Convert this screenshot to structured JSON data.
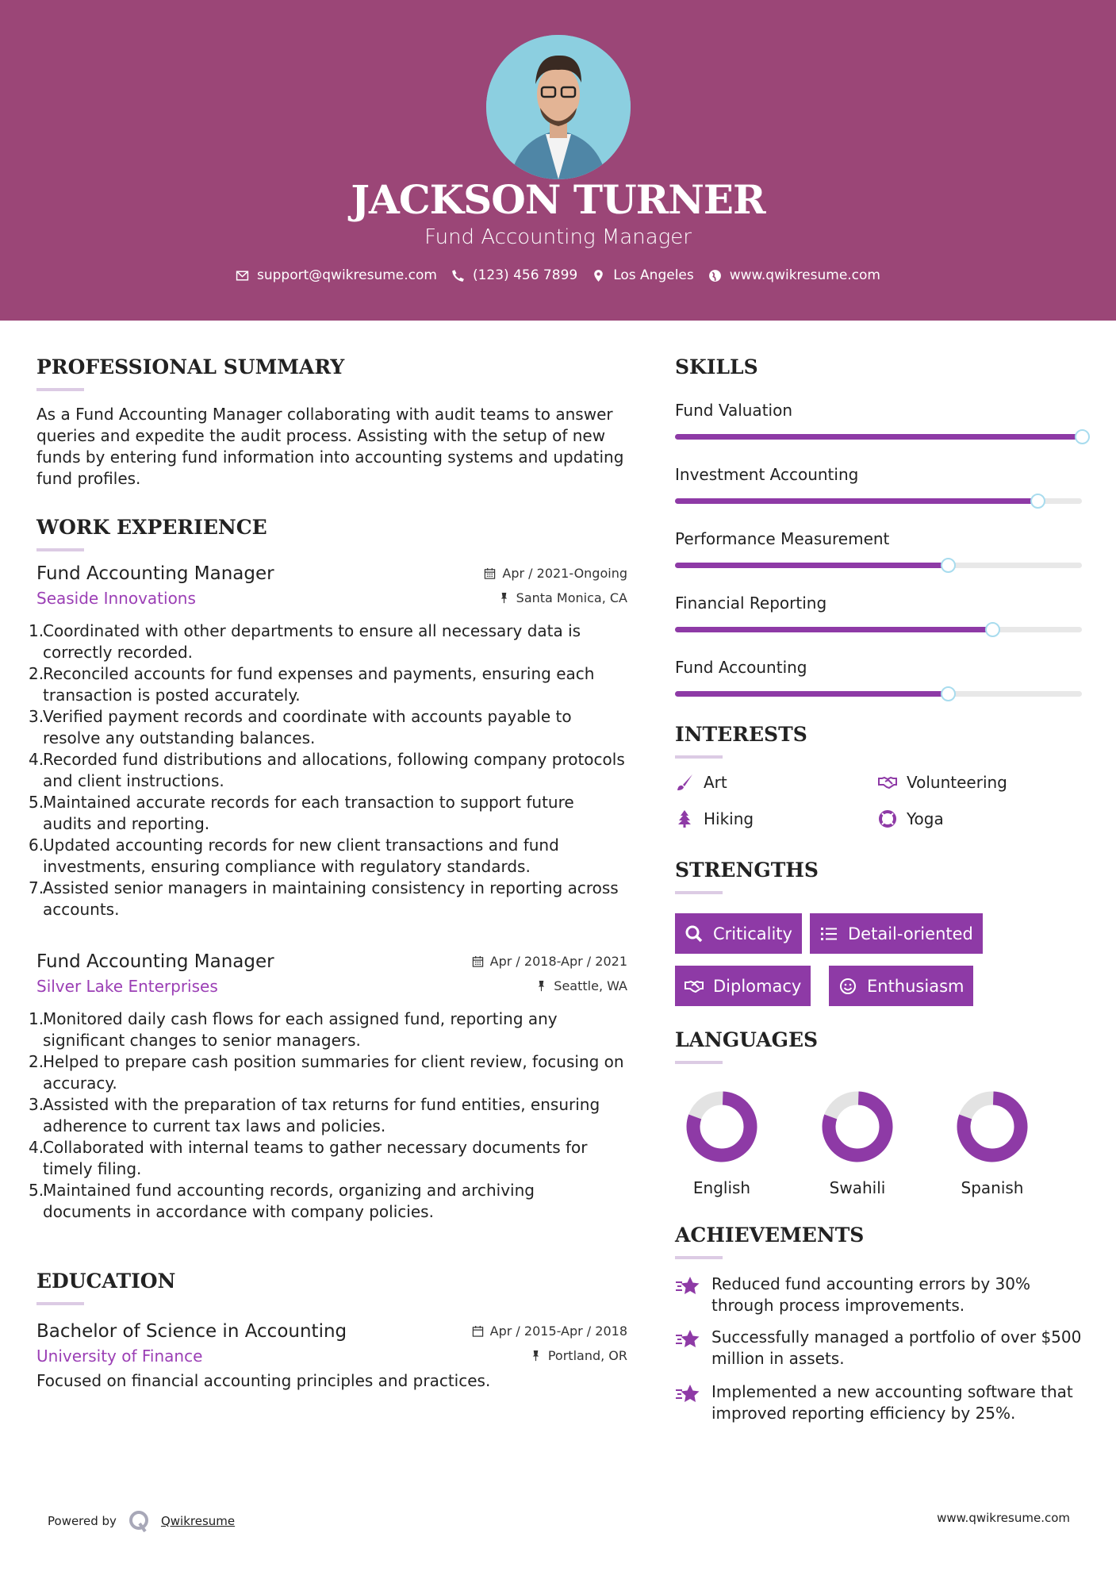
{
  "header": {
    "name": "JACKSON TURNER",
    "title": "Fund Accounting Manager",
    "contacts": [
      {
        "icon": "envelope-icon",
        "text": "support@qwikresume.com"
      },
      {
        "icon": "phone-icon",
        "text": "(123) 456 7899"
      },
      {
        "icon": "map-marker-icon",
        "text": "Los Angeles"
      },
      {
        "icon": "globe-icon",
        "text": "www.qwikresume.com"
      }
    ]
  },
  "colors": {
    "header": "#9b4677",
    "accent": "#8e3aa6",
    "company": "#9b3fb5"
  },
  "summary": {
    "heading": "PROFESSIONAL SUMMARY",
    "text": "As a Fund Accounting Manager collaborating with audit teams to answer queries and expedite the audit process. Assisting with the setup of new funds by entering fund information into accounting systems and updating fund profiles."
  },
  "experience": {
    "heading": "WORK EXPERIENCE",
    "jobs": [
      {
        "title": "Fund Accounting Manager",
        "company": "Seaside Innovations",
        "date": "Apr / 2021-Ongoing",
        "location": "Santa Monica, CA",
        "items": [
          "Coordinated with other departments to ensure all necessary data is correctly recorded.",
          "Reconciled accounts for fund expenses and payments, ensuring each transaction is posted accurately.",
          "Verified payment records and coordinate with accounts payable to resolve any outstanding balances.",
          "Recorded fund distributions and allocations, following company protocols and client instructions.",
          "Maintained accurate records for each transaction to support future audits and reporting.",
          "Updated accounting records for new client transactions and fund investments, ensuring compliance with regulatory standards.",
          "Assisted senior managers in maintaining consistency in reporting across accounts."
        ]
      },
      {
        "title": "Fund Accounting Manager",
        "company": "Silver Lake Enterprises",
        "date": "Apr / 2018-Apr / 2021",
        "location": "Seattle, WA",
        "items": [
          "Monitored daily cash flows for each assigned fund, reporting any significant changes to senior managers.",
          "Helped to prepare cash position summaries for client review, focusing on accuracy.",
          "Assisted with the preparation of tax returns for fund entities, ensuring adherence to current tax laws and policies.",
          "Collaborated with internal teams to gather necessary documents for timely filing.",
          "Maintained fund accounting records, organizing and archiving documents in accordance with company policies."
        ]
      }
    ]
  },
  "education": {
    "heading": "EDUCATION",
    "degree": "Bachelor of Science in Accounting",
    "school": "University of Finance",
    "date": "Apr / 2015-Apr / 2018",
    "location": "Portland, OR",
    "description": "Focused on financial accounting principles and practices."
  },
  "skills": {
    "heading": "SKILLS",
    "items": [
      {
        "name": "Fund Valuation",
        "level": 100
      },
      {
        "name": "Investment Accounting",
        "level": 89
      },
      {
        "name": "Performance Measurement",
        "level": 67
      },
      {
        "name": "Financial Reporting",
        "level": 78
      },
      {
        "name": "Fund Accounting",
        "level": 67
      }
    ]
  },
  "interests": {
    "heading": "INTERESTS",
    "items": [
      {
        "name": "Art",
        "icon": "paint-brush-icon"
      },
      {
        "name": "Volunteering",
        "icon": "handshake-icon"
      },
      {
        "name": "Hiking",
        "icon": "tree-icon"
      },
      {
        "name": "Yoga",
        "icon": "life-ring-icon"
      }
    ]
  },
  "strengths": {
    "heading": "STRENGTHS",
    "items": [
      {
        "name": "Criticality",
        "icon": "search-icon"
      },
      {
        "name": "Detail-oriented",
        "icon": "list-icon"
      },
      {
        "name": "Diplomacy",
        "icon": "handshake-icon"
      },
      {
        "name": "Enthusiasm",
        "icon": "smile-icon"
      }
    ]
  },
  "languages": {
    "heading": "LANGUAGES",
    "items": [
      {
        "name": "English",
        "level": 80
      },
      {
        "name": "Swahili",
        "level": 80
      },
      {
        "name": "Spanish",
        "level": 80
      }
    ]
  },
  "achievements": {
    "heading": "ACHIEVEMENTS",
    "items": [
      "Reduced fund accounting errors by 30% through process improvements.",
      "Successfully managed a portfolio of over $500 million in assets.",
      "Implemented a new accounting software that improved reporting efficiency by 25%."
    ]
  },
  "footer": {
    "powered_by": "Powered by",
    "brand": "Qwikresume",
    "website": "www.qwikresume.com"
  }
}
